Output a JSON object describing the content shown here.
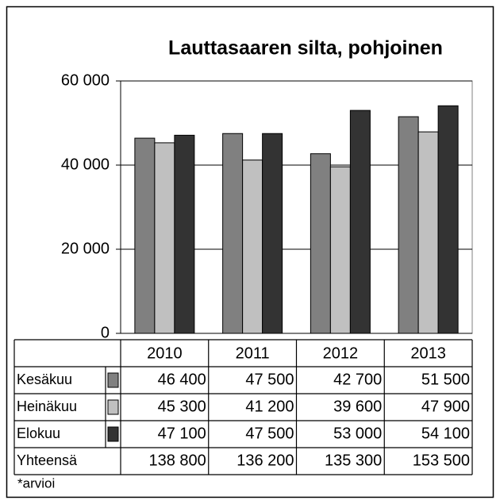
{
  "chart_data": {
    "type": "bar",
    "title": "Lauttasaaren silta, pohjoinen",
    "categories": [
      "2010",
      "2011",
      "2012",
      "2013"
    ],
    "series": [
      {
        "name": "Kesäkuu",
        "color": "#808080",
        "values": [
          46400,
          47500,
          42700,
          51500
        ],
        "value_labels": [
          "46 400",
          "47 500",
          "42 700",
          "51 500"
        ]
      },
      {
        "name": "Heinäkuu",
        "color": "#c0c0c0",
        "values": [
          45300,
          41200,
          39600,
          47900
        ],
        "value_labels": [
          "45 300",
          "41 200",
          "39 600",
          "47 900"
        ]
      },
      {
        "name": "Elokuu",
        "color": "#333333",
        "values": [
          47100,
          47500,
          53000,
          54100
        ],
        "value_labels": [
          "47 100",
          "47 500",
          "53 000",
          "54 100"
        ]
      }
    ],
    "totals": {
      "name": "Yhteensä",
      "values": [
        138800,
        136200,
        135300,
        153500
      ],
      "value_labels": [
        "138 800",
        "136 200",
        "135 300",
        "153 500"
      ]
    },
    "ylim": [
      0,
      60000
    ],
    "yticks": [
      0,
      {
        "value": 20000,
        "label": "20 000"
      },
      {
        "value": 40000,
        "label": "40 000"
      },
      {
        "value": 60000,
        "label": "60 000"
      }
    ],
    "grid": true,
    "note": "*arvioi"
  }
}
